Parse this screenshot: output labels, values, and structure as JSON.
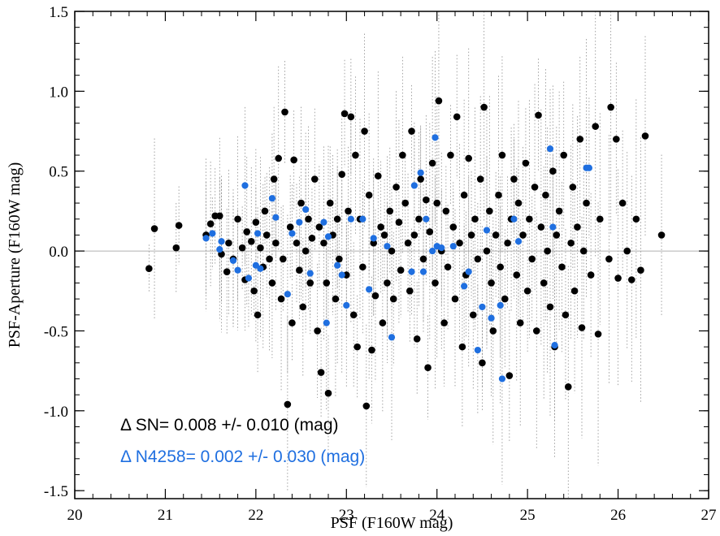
{
  "chart_data": {
    "type": "scatter",
    "title": "",
    "xlabel": "PSF (F160W mag)",
    "ylabel": "PSF-Aperture (F160W mag)",
    "xlim": [
      20,
      27
    ],
    "ylim": [
      -1.55,
      1.5
    ],
    "xticks": [
      20,
      21,
      22,
      23,
      24,
      25,
      26,
      27
    ],
    "xtick_labels": [
      "20",
      "21",
      "22",
      "23",
      "24",
      "25",
      "26",
      "27"
    ],
    "yticks": [
      -1.5,
      -1.0,
      -0.5,
      0.0,
      0.5,
      1.0,
      1.5
    ],
    "ytick_labels": [
      "-1.5",
      "-1.0",
      "-0.5",
      "0.0",
      "0.5",
      "1.0",
      "1.5"
    ],
    "grid": false,
    "reference_line_y": 0.0,
    "colors": {
      "sn": "#000000",
      "n4258": "#1f6fe0",
      "errorbar": "#8c8c8c",
      "refline": "#b0b0b0"
    },
    "annotations": [
      {
        "text": "Δ SN= 0.008 +/- 0.010 (mag)",
        "color": "#000000"
      },
      {
        "text": "Δ N4258= 0.002 +/- 0.030 (mag)",
        "color": "#1f6fe0"
      }
    ],
    "series": [
      {
        "color": "#000000",
        "points": [
          [
            20.82,
            -0.11
          ],
          [
            20.88,
            0.14
          ],
          [
            21.12,
            0.02
          ],
          [
            21.15,
            0.16
          ],
          [
            21.45,
            0.1
          ],
          [
            21.5,
            0.17
          ],
          [
            21.55,
            0.22
          ],
          [
            21.6,
            0.22
          ],
          [
            21.62,
            -0.02
          ],
          [
            21.68,
            -0.13
          ],
          [
            21.7,
            0.05
          ],
          [
            21.75,
            -0.05
          ],
          [
            21.8,
            0.2
          ],
          [
            21.85,
            0.02
          ],
          [
            21.88,
            -0.18
          ],
          [
            21.9,
            0.12
          ],
          [
            21.95,
            0.06
          ],
          [
            21.98,
            -0.25
          ],
          [
            22.0,
            0.18
          ],
          [
            22.02,
            -0.4
          ],
          [
            22.05,
            0.02
          ],
          [
            22.08,
            -0.1
          ],
          [
            22.1,
            0.25
          ],
          [
            22.12,
            0.1
          ],
          [
            22.15,
            -0.05
          ],
          [
            22.18,
            -0.2
          ],
          [
            22.2,
            0.45
          ],
          [
            22.22,
            0.05
          ],
          [
            22.25,
            0.58
          ],
          [
            22.28,
            -0.3
          ],
          [
            22.3,
            -0.05
          ],
          [
            22.32,
            0.87
          ],
          [
            22.35,
            -0.96
          ],
          [
            22.38,
            0.15
          ],
          [
            22.4,
            -0.45
          ],
          [
            22.42,
            0.57
          ],
          [
            22.45,
            0.05
          ],
          [
            22.48,
            -0.12
          ],
          [
            22.5,
            0.3
          ],
          [
            22.52,
            -0.35
          ],
          [
            22.55,
            0.0
          ],
          [
            22.58,
            0.2
          ],
          [
            22.6,
            -0.2
          ],
          [
            22.62,
            0.08
          ],
          [
            22.65,
            0.45
          ],
          [
            22.68,
            -0.5
          ],
          [
            22.7,
            0.15
          ],
          [
            22.72,
            -0.76
          ],
          [
            22.75,
            0.05
          ],
          [
            22.78,
            -0.2
          ],
          [
            22.8,
            -0.89
          ],
          [
            22.82,
            0.3
          ],
          [
            22.85,
            0.1
          ],
          [
            22.88,
            -0.3
          ],
          [
            22.9,
            0.2
          ],
          [
            22.92,
            -0.05
          ],
          [
            22.95,
            0.48
          ],
          [
            22.98,
            0.86
          ],
          [
            23.0,
            -0.15
          ],
          [
            23.02,
            0.25
          ],
          [
            23.05,
            0.84
          ],
          [
            23.08,
            -0.4
          ],
          [
            23.1,
            0.6
          ],
          [
            23.12,
            -0.6
          ],
          [
            23.15,
            0.2
          ],
          [
            23.18,
            -0.1
          ],
          [
            23.2,
            0.75
          ],
          [
            23.22,
            -0.97
          ],
          [
            23.25,
            0.35
          ],
          [
            23.28,
            -0.62
          ],
          [
            23.3,
            0.05
          ],
          [
            23.32,
            -0.28
          ],
          [
            23.35,
            0.47
          ],
          [
            23.38,
            0.15
          ],
          [
            23.4,
            -0.45
          ],
          [
            23.42,
            0.1
          ],
          [
            23.45,
            -0.2
          ],
          [
            23.48,
            0.25
          ],
          [
            23.5,
            0.0
          ],
          [
            23.52,
            -0.3
          ],
          [
            23.55,
            0.4
          ],
          [
            23.58,
            0.18
          ],
          [
            23.6,
            -0.12
          ],
          [
            23.62,
            0.6
          ],
          [
            23.65,
            0.3
          ],
          [
            23.68,
            0.05
          ],
          [
            23.7,
            -0.25
          ],
          [
            23.72,
            0.75
          ],
          [
            23.75,
            0.1
          ],
          [
            23.78,
            -0.55
          ],
          [
            23.8,
            0.2
          ],
          [
            23.82,
            0.45
          ],
          [
            23.85,
            -0.05
          ],
          [
            23.88,
            0.32
          ],
          [
            23.9,
            -0.73
          ],
          [
            23.92,
            0.12
          ],
          [
            23.95,
            0.55
          ],
          [
            23.98,
            -0.2
          ],
          [
            24.0,
            0.3
          ],
          [
            24.02,
            0.94
          ],
          [
            24.05,
            0.0
          ],
          [
            24.08,
            -0.45
          ],
          [
            24.1,
            0.25
          ],
          [
            24.12,
            -0.1
          ],
          [
            24.15,
            0.6
          ],
          [
            24.18,
            0.15
          ],
          [
            24.2,
            -0.3
          ],
          [
            24.22,
            0.84
          ],
          [
            24.25,
            0.05
          ],
          [
            24.28,
            -0.6
          ],
          [
            24.3,
            0.35
          ],
          [
            24.32,
            -0.15
          ],
          [
            24.35,
            0.58
          ],
          [
            24.38,
            0.1
          ],
          [
            24.4,
            -0.4
          ],
          [
            24.42,
            0.2
          ],
          [
            24.45,
            -0.05
          ],
          [
            24.48,
            0.45
          ],
          [
            24.5,
            -0.7
          ],
          [
            24.52,
            0.9
          ],
          [
            24.55,
            0.0
          ],
          [
            24.58,
            0.25
          ],
          [
            24.6,
            -0.2
          ],
          [
            24.62,
            -0.5
          ],
          [
            24.65,
            0.1
          ],
          [
            24.68,
            0.35
          ],
          [
            24.7,
            -0.1
          ],
          [
            24.72,
            0.6
          ],
          [
            24.75,
            -0.3
          ],
          [
            24.78,
            0.05
          ],
          [
            24.8,
            -0.78
          ],
          [
            24.82,
            0.2
          ],
          [
            24.85,
            0.45
          ],
          [
            24.88,
            -0.15
          ],
          [
            24.9,
            0.3
          ],
          [
            24.92,
            -0.45
          ],
          [
            24.95,
            0.1
          ],
          [
            24.98,
            0.55
          ],
          [
            25.0,
            -0.25
          ],
          [
            25.02,
            0.2
          ],
          [
            25.05,
            -0.05
          ],
          [
            25.08,
            0.4
          ],
          [
            25.1,
            -0.5
          ],
          [
            25.12,
            0.85
          ],
          [
            25.15,
            0.15
          ],
          [
            25.18,
            -0.2
          ],
          [
            25.2,
            0.35
          ],
          [
            25.22,
            0.0
          ],
          [
            25.25,
            -0.35
          ],
          [
            25.28,
            0.5
          ],
          [
            25.3,
            -0.6
          ],
          [
            25.32,
            0.1
          ],
          [
            25.35,
            0.25
          ],
          [
            25.38,
            -0.1
          ],
          [
            25.4,
            0.6
          ],
          [
            25.42,
            -0.4
          ],
          [
            25.45,
            -0.85
          ],
          [
            25.48,
            0.05
          ],
          [
            25.5,
            0.4
          ],
          [
            25.52,
            -0.25
          ],
          [
            25.55,
            0.15
          ],
          [
            25.58,
            0.7
          ],
          [
            25.6,
            -0.48
          ],
          [
            25.62,
            0.0
          ],
          [
            25.65,
            0.3
          ],
          [
            25.7,
            -0.15
          ],
          [
            25.75,
            0.78
          ],
          [
            25.78,
            -0.52
          ],
          [
            25.8,
            0.2
          ],
          [
            25.9,
            -0.05
          ],
          [
            25.92,
            0.9
          ],
          [
            25.98,
            0.7
          ],
          [
            26.0,
            -0.17
          ],
          [
            26.05,
            0.3
          ],
          [
            26.1,
            0.0
          ],
          [
            26.15,
            -0.18
          ],
          [
            26.2,
            0.2
          ],
          [
            26.25,
            -0.12
          ],
          [
            26.3,
            0.72
          ],
          [
            26.48,
            0.1
          ]
        ]
      },
      {
        "color": "#1f6fe0",
        "points": [
          [
            21.45,
            0.08
          ],
          [
            21.52,
            0.11
          ],
          [
            21.6,
            0.01
          ],
          [
            21.62,
            0.06
          ],
          [
            21.75,
            -0.06
          ],
          [
            21.8,
            -0.12
          ],
          [
            21.88,
            0.41
          ],
          [
            21.92,
            -0.17
          ],
          [
            22.0,
            -0.09
          ],
          [
            22.02,
            0.11
          ],
          [
            22.05,
            -0.11
          ],
          [
            22.18,
            0.33
          ],
          [
            22.22,
            0.21
          ],
          [
            22.35,
            -0.27
          ],
          [
            22.4,
            0.11
          ],
          [
            22.48,
            0.18
          ],
          [
            22.55,
            0.26
          ],
          [
            22.6,
            -0.14
          ],
          [
            22.75,
            0.18
          ],
          [
            22.78,
            -0.45
          ],
          [
            22.8,
            0.09
          ],
          [
            22.9,
            -0.09
          ],
          [
            22.95,
            -0.15
          ],
          [
            23.0,
            -0.34
          ],
          [
            23.05,
            0.2
          ],
          [
            23.18,
            0.2
          ],
          [
            23.25,
            -0.24
          ],
          [
            23.3,
            0.08
          ],
          [
            23.45,
            0.03
          ],
          [
            23.5,
            -0.54
          ],
          [
            23.72,
            -0.13
          ],
          [
            23.75,
            0.41
          ],
          [
            23.82,
            0.49
          ],
          [
            23.85,
            -0.13
          ],
          [
            23.88,
            0.2
          ],
          [
            23.95,
            0.0
          ],
          [
            23.98,
            0.71
          ],
          [
            24.0,
            0.03
          ],
          [
            24.05,
            0.02
          ],
          [
            24.18,
            0.03
          ],
          [
            24.3,
            -0.22
          ],
          [
            24.35,
            -0.13
          ],
          [
            24.45,
            -0.62
          ],
          [
            24.5,
            -0.35
          ],
          [
            24.55,
            0.13
          ],
          [
            24.6,
            -0.42
          ],
          [
            24.7,
            -0.34
          ],
          [
            24.72,
            -0.8
          ],
          [
            24.85,
            0.2
          ],
          [
            24.9,
            0.06
          ],
          [
            25.25,
            0.64
          ],
          [
            25.28,
            0.15
          ],
          [
            25.3,
            -0.59
          ],
          [
            25.65,
            0.52
          ],
          [
            25.68,
            0.52
          ]
        ]
      }
    ]
  }
}
